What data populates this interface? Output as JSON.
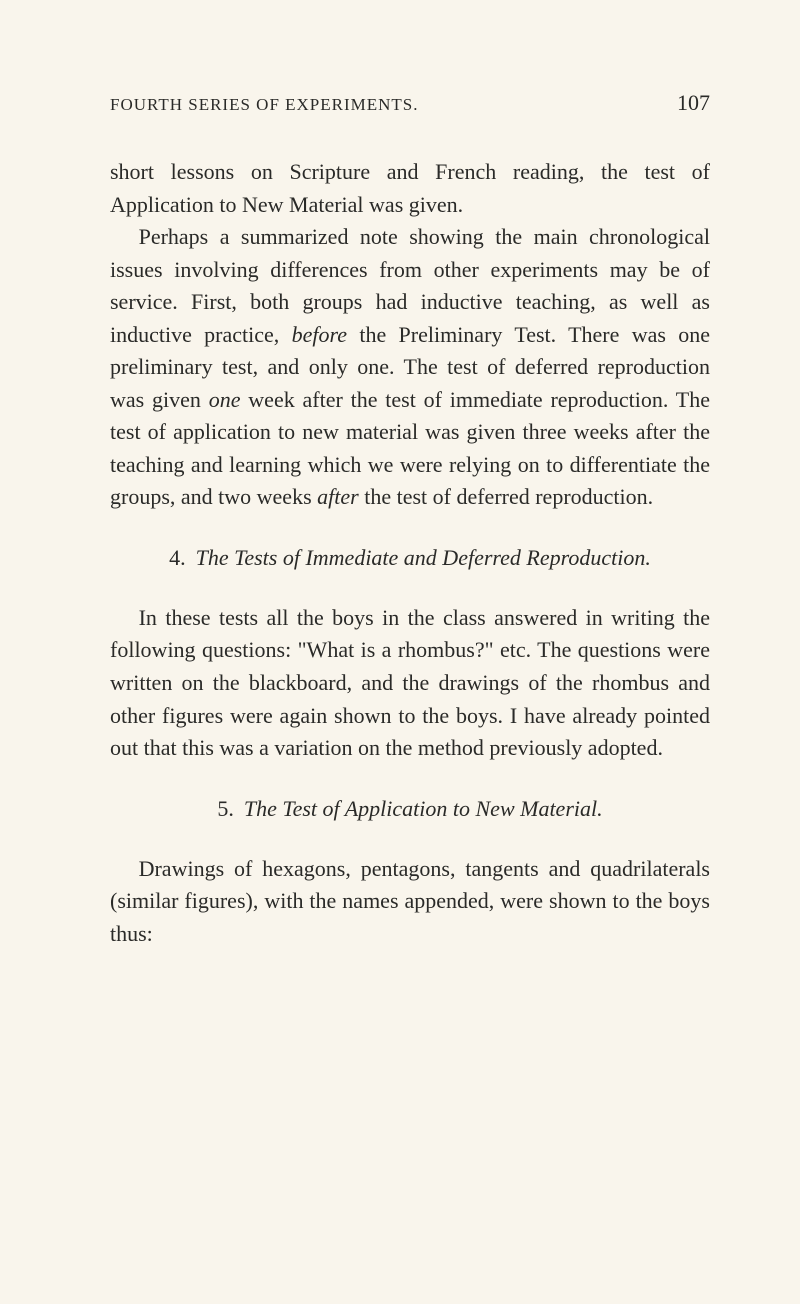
{
  "header": {
    "running_title": "FOURTH SERIES OF EXPERIMENTS.",
    "page_number": "107"
  },
  "paragraphs": {
    "p1": "short lessons on Scripture and French reading, the test of Application to New Material was given.",
    "p2_a": "Perhaps a summarized note showing the main chronological issues involving differences from other experiments may be of service. First, both groups had inductive teaching, as well as inductive practice, ",
    "p2_before": "before",
    "p2_b": " the Preliminary Test. There was one preliminary test, and only one. The test of deferred reproduction was given ",
    "p2_one": "one",
    "p2_c": " week after the test of immediate reproduction. The test of application to new material was given three weeks after the teaching and learning which we were relying on to differentiate the groups, and two weeks ",
    "p2_after": "after",
    "p2_d": " the test of deferred reproduction.",
    "p3": "In these tests all the boys in the class answered in writing the following questions: \"What is a rhombus?\" etc. The questions were written on the blackboard, and the drawings of the rhombus and other figures were again shown to the boys. I have already pointed out that this was a variation on the method previously adopted.",
    "p4": "Drawings of hexagons, pentagons, tangents and quadrilaterals (similar figures), with the names appended, were shown to the boys thus:"
  },
  "headings": {
    "h4_num": "4.",
    "h4_text": "The Tests of Immediate and Deferred Reproduction.",
    "h5_num": "5.",
    "h5_text": "The Test of Application to New Material."
  }
}
